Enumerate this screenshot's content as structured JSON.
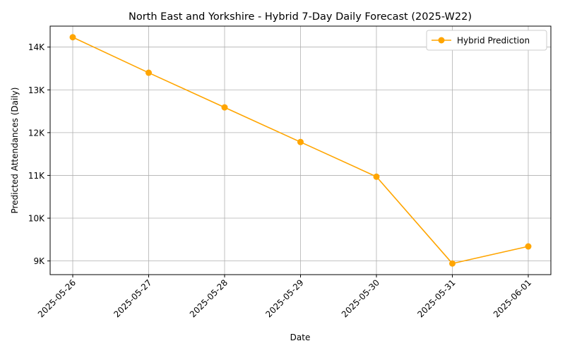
{
  "chart_data": {
    "type": "line",
    "title": "North East and Yorkshire - Hybrid 7-Day Daily Forecast (2025-W22)",
    "xlabel": "Date",
    "ylabel": "Predicted Attendances (Daily)",
    "x": [
      "2025-05-26",
      "2025-05-27",
      "2025-05-28",
      "2025-05-29",
      "2025-05-30",
      "2025-05-31",
      "2025-06-01"
    ],
    "series": [
      {
        "name": "Hybrid Prediction",
        "color": "#ffa500",
        "marker": "circle",
        "values": [
          14230,
          13400,
          12590,
          11780,
          10970,
          8940,
          9340
        ]
      }
    ],
    "ylim": [
      8680,
      14490
    ],
    "yticks": [
      9000,
      10000,
      11000,
      12000,
      13000,
      14000
    ],
    "ytick_labels": [
      "9K",
      "10K",
      "11K",
      "12K",
      "13K",
      "14K"
    ],
    "grid": true,
    "legend_position": "upper-right"
  }
}
